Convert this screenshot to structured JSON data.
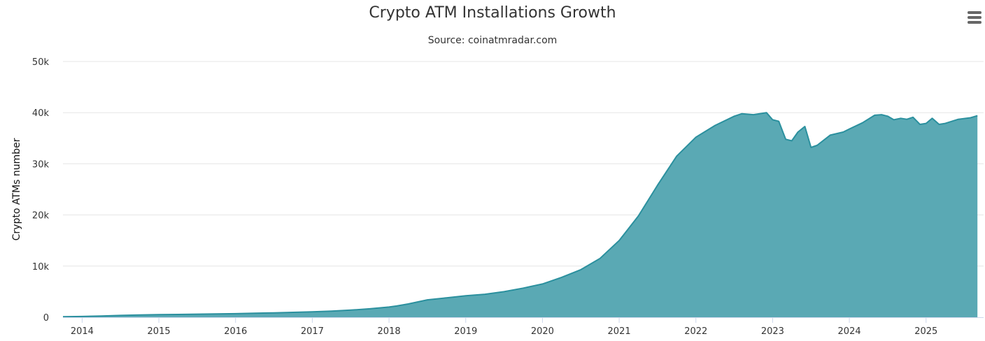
{
  "chart_data": {
    "type": "area",
    "title": "Crypto ATM Installations Growth",
    "subtitle": "Source: coinatmradar.com",
    "ylabel": "Crypto ATMs number",
    "xlabel": "",
    "ylim": [
      0,
      50000
    ],
    "y_ticks": [
      {
        "value": 0,
        "label": "0"
      },
      {
        "value": 10000,
        "label": "10k"
      },
      {
        "value": 20000,
        "label": "20k"
      },
      {
        "value": 30000,
        "label": "30k"
      },
      {
        "value": 40000,
        "label": "40k"
      },
      {
        "value": 50000,
        "label": "50k"
      }
    ],
    "x_ticks": [
      "2014",
      "2015",
      "2016",
      "2017",
      "2018",
      "2019",
      "2020",
      "2021",
      "2022",
      "2023",
      "2024",
      "2025"
    ],
    "xlim": [
      2013.75,
      2025.75
    ],
    "grid": true,
    "legend": "none",
    "color": "#2b909e",
    "fill_color": "#5aa9b4",
    "series": [
      {
        "x": [
          2013.75,
          2014.0,
          2014.25,
          2014.5,
          2014.75,
          2015.0,
          2015.25,
          2015.5,
          2015.75,
          2016.0,
          2016.25,
          2016.5,
          2016.75,
          2017.0,
          2017.25,
          2017.5,
          2017.75,
          2018.0,
          2018.1,
          2018.25,
          2018.5,
          2018.75,
          2019.0,
          2019.25,
          2019.5,
          2019.75,
          2020.0,
          2020.25,
          2020.5,
          2020.75,
          2021.0,
          2021.25,
          2021.5,
          2021.75,
          2022.0,
          2022.25,
          2022.5,
          2022.6,
          2022.75,
          2022.92,
          2023.0,
          2023.08,
          2023.17,
          2023.25,
          2023.33,
          2023.42,
          2023.5,
          2023.58,
          2023.75,
          2023.92,
          2024.0,
          2024.17,
          2024.33,
          2024.42,
          2024.5,
          2024.58,
          2024.67,
          2024.75,
          2024.83,
          2024.92,
          2025.0,
          2025.08,
          2025.17,
          2025.25,
          2025.42,
          2025.58,
          2025.67
        ],
        "y": [
          100,
          150,
          250,
          350,
          450,
          500,
          550,
          600,
          650,
          700,
          780,
          860,
          950,
          1050,
          1200,
          1400,
          1650,
          2000,
          2200,
          2600,
          3400,
          3800,
          4200,
          4500,
          5000,
          5700,
          6500,
          7800,
          9300,
          11500,
          15000,
          19800,
          25800,
          31500,
          35200,
          37500,
          39300,
          39800,
          39600,
          40000,
          38600,
          38300,
          34800,
          34500,
          36200,
          37300,
          33200,
          33600,
          35600,
          36200,
          36800,
          38000,
          39500,
          39600,
          39300,
          38600,
          38900,
          38700,
          39100,
          37700,
          37900,
          38900,
          37700,
          37900,
          38700,
          39000,
          39400
        ]
      }
    ]
  },
  "ui": {
    "menu_icon": "hamburger-menu-icon"
  }
}
